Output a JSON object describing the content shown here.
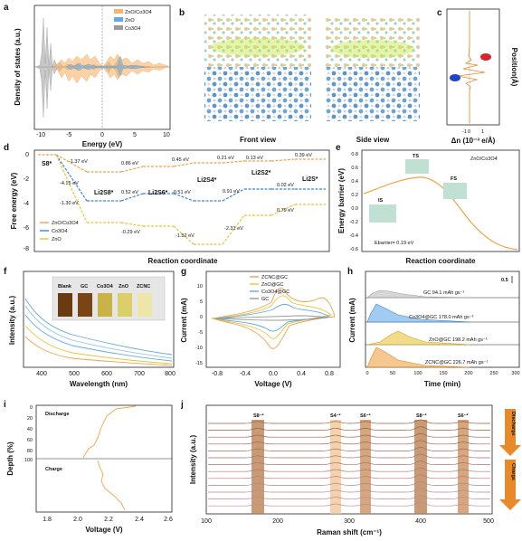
{
  "panels": {
    "a": {
      "label": "a",
      "ylabel": "Density of states (a.u.)",
      "xlabel": "Energy (eV)",
      "xticks": [
        "-10",
        "-5",
        "0",
        "5",
        "10"
      ],
      "legend": [
        "ZnO/Co3O4",
        "ZnO",
        "Co3O4"
      ],
      "colors": [
        "#f7b46b",
        "#62a9e8",
        "#9a9a9a"
      ]
    },
    "b": {
      "label": "b",
      "front": "Front view",
      "side": "Side view"
    },
    "c": {
      "label": "c",
      "xlabel": "Δn (10⁻³ e/Å)",
      "ylabel": "Position(Å)",
      "xticks": [
        "-1",
        "0",
        "1"
      ]
    },
    "d": {
      "label": "d",
      "ylabel": "Free energy (eV)",
      "xlabel": "Reaction coordinate",
      "yticks": [
        "0",
        "-2",
        "-4",
        "-6",
        "-8"
      ],
      "species": [
        "S8*",
        "Li2S8*",
        "Li2S6*",
        "Li2S4*",
        "Li2S2*",
        "Li2S*"
      ],
      "legend": [
        "ZnO/Co3O4",
        "Co3O4",
        "ZnO"
      ],
      "orange_labels": [
        "-1.37 eV",
        "0.86 eV",
        "0.45 eV",
        "0.21 eV",
        "0.13 eV",
        "0.39 eV"
      ],
      "blue_labels": [
        "-4.15 eV",
        "0.52 eV",
        "-0.51 eV",
        "0.91 eV",
        "0.02 eV"
      ],
      "yellow_labels": [
        "-1.30 eV",
        "-0.29 eV",
        "-1.52 eV",
        "-2.31 eV",
        "0.79 eV"
      ]
    },
    "e": {
      "label": "e",
      "ylabel": "Energy barrier (eV)",
      "xlabel": "Reaction coordinate",
      "yticks": [
        "0.8",
        "0.6",
        "0.4",
        "0.2",
        "0.0",
        "-0.2",
        "-0.4",
        "-0.6"
      ],
      "ts": "TS",
      "is": "IS",
      "fs": "FS",
      "material": "ZnO/Co3O4",
      "barrier": "Ebarrier= 0.19 eV"
    },
    "f": {
      "label": "f",
      "ylabel": "Intensity (a.u.)",
      "xlabel": "Wavelength (nm)",
      "xticks": [
        "400",
        "500",
        "600",
        "700",
        "800"
      ],
      "vials": [
        "Blank",
        "GC",
        "Co3O4",
        "ZnO",
        "ZCNC"
      ]
    },
    "g": {
      "label": "g",
      "ylabel": "Current (mA)",
      "xlabel": "Voltage (V)",
      "xticks": [
        "-0.8",
        "-0.4",
        "0.0",
        "0.4",
        "0.8"
      ],
      "yticks": [
        "10",
        "5",
        "0",
        "-5",
        "-10",
        "-15"
      ],
      "legend": [
        "ZCNC@GC",
        "ZnO@GC",
        "Co3O4@GC",
        "GC"
      ]
    },
    "h": {
      "label": "h",
      "ylabel": "Current (mA)",
      "xlabel": "Time (min)",
      "xticks": [
        "0",
        "50",
        "100",
        "150",
        "200",
        "250",
        "300"
      ],
      "scale": "0.5",
      "traces": [
        "GC 94.1 mAh gs⁻¹",
        "Co3O4@GC 178.0 mAh gs⁻¹",
        "ZnO@GC 198.2 mAh gs⁻¹",
        "ZCNC@GC 226.7 mAh gs⁻¹"
      ]
    },
    "i": {
      "label": "i",
      "ylabel": "Depth (%)",
      "xlabel": "Voltage (V)",
      "discharge": "Discharge",
      "charge": "Charge",
      "xticks": [
        "1.8",
        "2.0",
        "2.2",
        "2.4",
        "2.6"
      ],
      "yticks": [
        "0",
        "20",
        "40",
        "60",
        "80",
        "100"
      ]
    },
    "j": {
      "label": "j",
      "ylabel": "Intensity (a.u.)",
      "xlabel": "Raman shift (cm⁻¹)",
      "xticks": [
        "100",
        "200",
        "300",
        "400",
        "500"
      ],
      "bands": [
        "S8⁻²",
        "S4⁻²",
        "S6⁻²",
        "S8⁻²",
        "S6⁻²"
      ],
      "discharge": "Discharge",
      "charge": "Charge"
    }
  }
}
